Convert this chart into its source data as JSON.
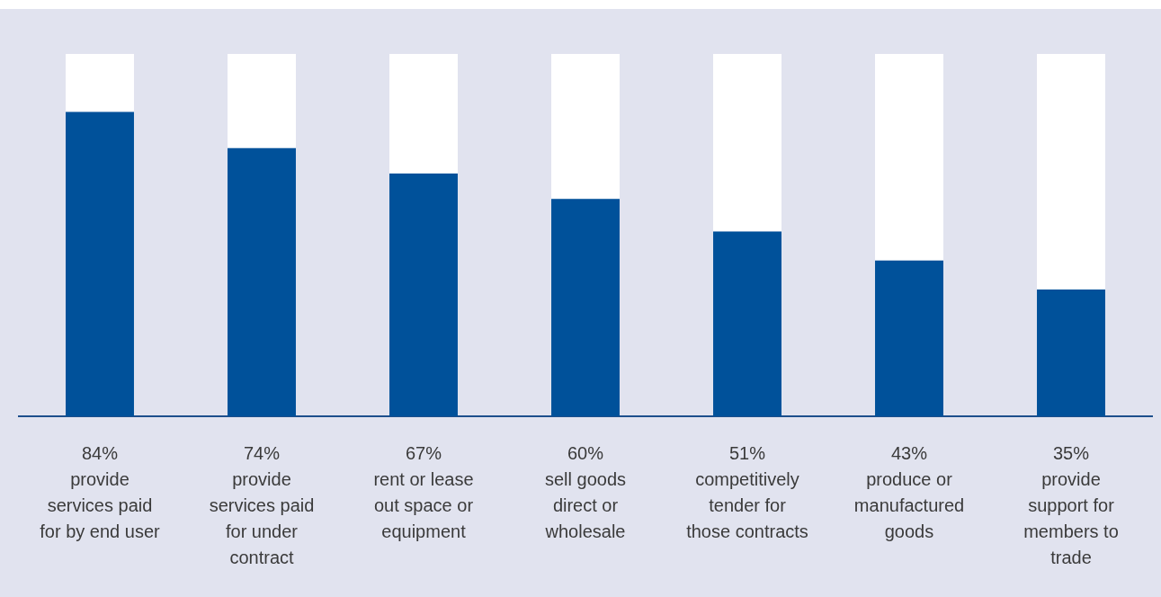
{
  "chart_data": {
    "type": "bar",
    "stacked": true,
    "categories": [
      "provide\nservices paid\nfor by end user",
      "provide\nservices paid\nfor under\ncontract",
      "rent or lease\nout space or\nequipment",
      "sell goods\ndirect or\nwholesale",
      "competitively\ntender for\nthose contracts",
      "produce or\nmanufactured\ngoods",
      "provide\nsupport for\nmembers to\ntrade"
    ],
    "series": [
      {
        "color": "#00519a",
        "values": [
          84,
          74,
          67,
          60,
          51,
          43,
          35
        ],
        "value_labels": [
          "84%",
          "74%",
          "67%",
          "60%",
          "51%",
          "43%",
          "35%"
        ]
      },
      {
        "color": "#ffffff",
        "values": [
          16,
          26,
          33,
          40,
          49,
          57,
          65
        ]
      }
    ],
    "ylim": [
      0,
      100
    ],
    "tick_labels": "x",
    "grid": false,
    "legend": false
  }
}
